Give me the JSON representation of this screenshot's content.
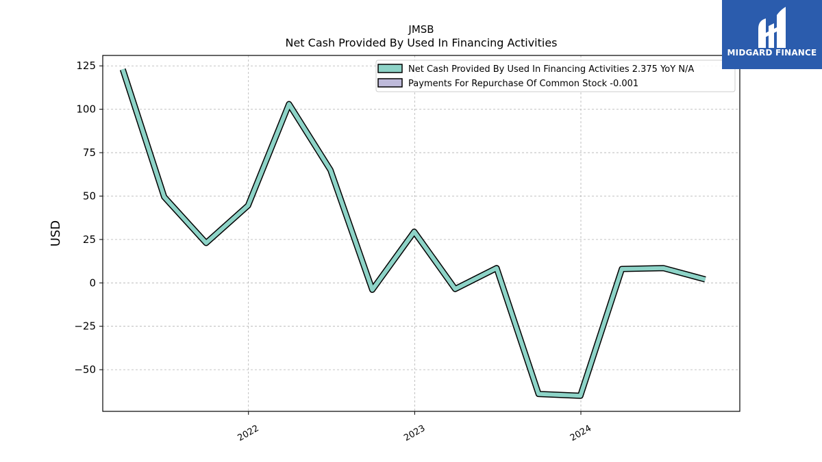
{
  "chart_data": {
    "type": "line",
    "title": "JMSB",
    "subtitle": "Net Cash Provided By Used In Financing Activities",
    "xlabel": "",
    "ylabel": "USD",
    "x_ticks": [
      "2022",
      "2023",
      "2024"
    ],
    "y_ticks": [
      "125",
      "100",
      "75",
      "50",
      "25",
      "0",
      "−25",
      "−50"
    ],
    "ylim": [
      -74,
      131
    ],
    "xlim": [
      "2021-02-15",
      "2024-12-15"
    ],
    "grid": true,
    "legend_position": "top-right",
    "series": [
      {
        "name": "Net Cash Provided By Used In Financing Activities",
        "legend_label": "Net Cash Provided By Used In Financing Activities  2.375 YoY N/A",
        "color": "#8dd3c7",
        "x": [
          "2021-03-31",
          "2021-06-30",
          "2021-09-30",
          "2021-12-31",
          "2022-03-31",
          "2022-06-30",
          "2022-09-30",
          "2022-12-31",
          "2023-03-31",
          "2023-06-30",
          "2023-09-30",
          "2023-12-31",
          "2024-03-31",
          "2024-06-30",
          "2024-09-30"
        ],
        "values": [
          123,
          49.5,
          23,
          44.5,
          103,
          65,
          -4,
          29.5,
          -3.5,
          8.5,
          -64,
          -65,
          8,
          8.5,
          2
        ]
      },
      {
        "name": "Payments For Repurchase Of Common Stock",
        "legend_label": "Payments For Repurchase Of Common Stock  -0.001",
        "color": "#bebada",
        "x": [],
        "values": []
      }
    ]
  },
  "logo": {
    "text": "MIDGARD FINANCE",
    "color": "#2b5cad"
  }
}
